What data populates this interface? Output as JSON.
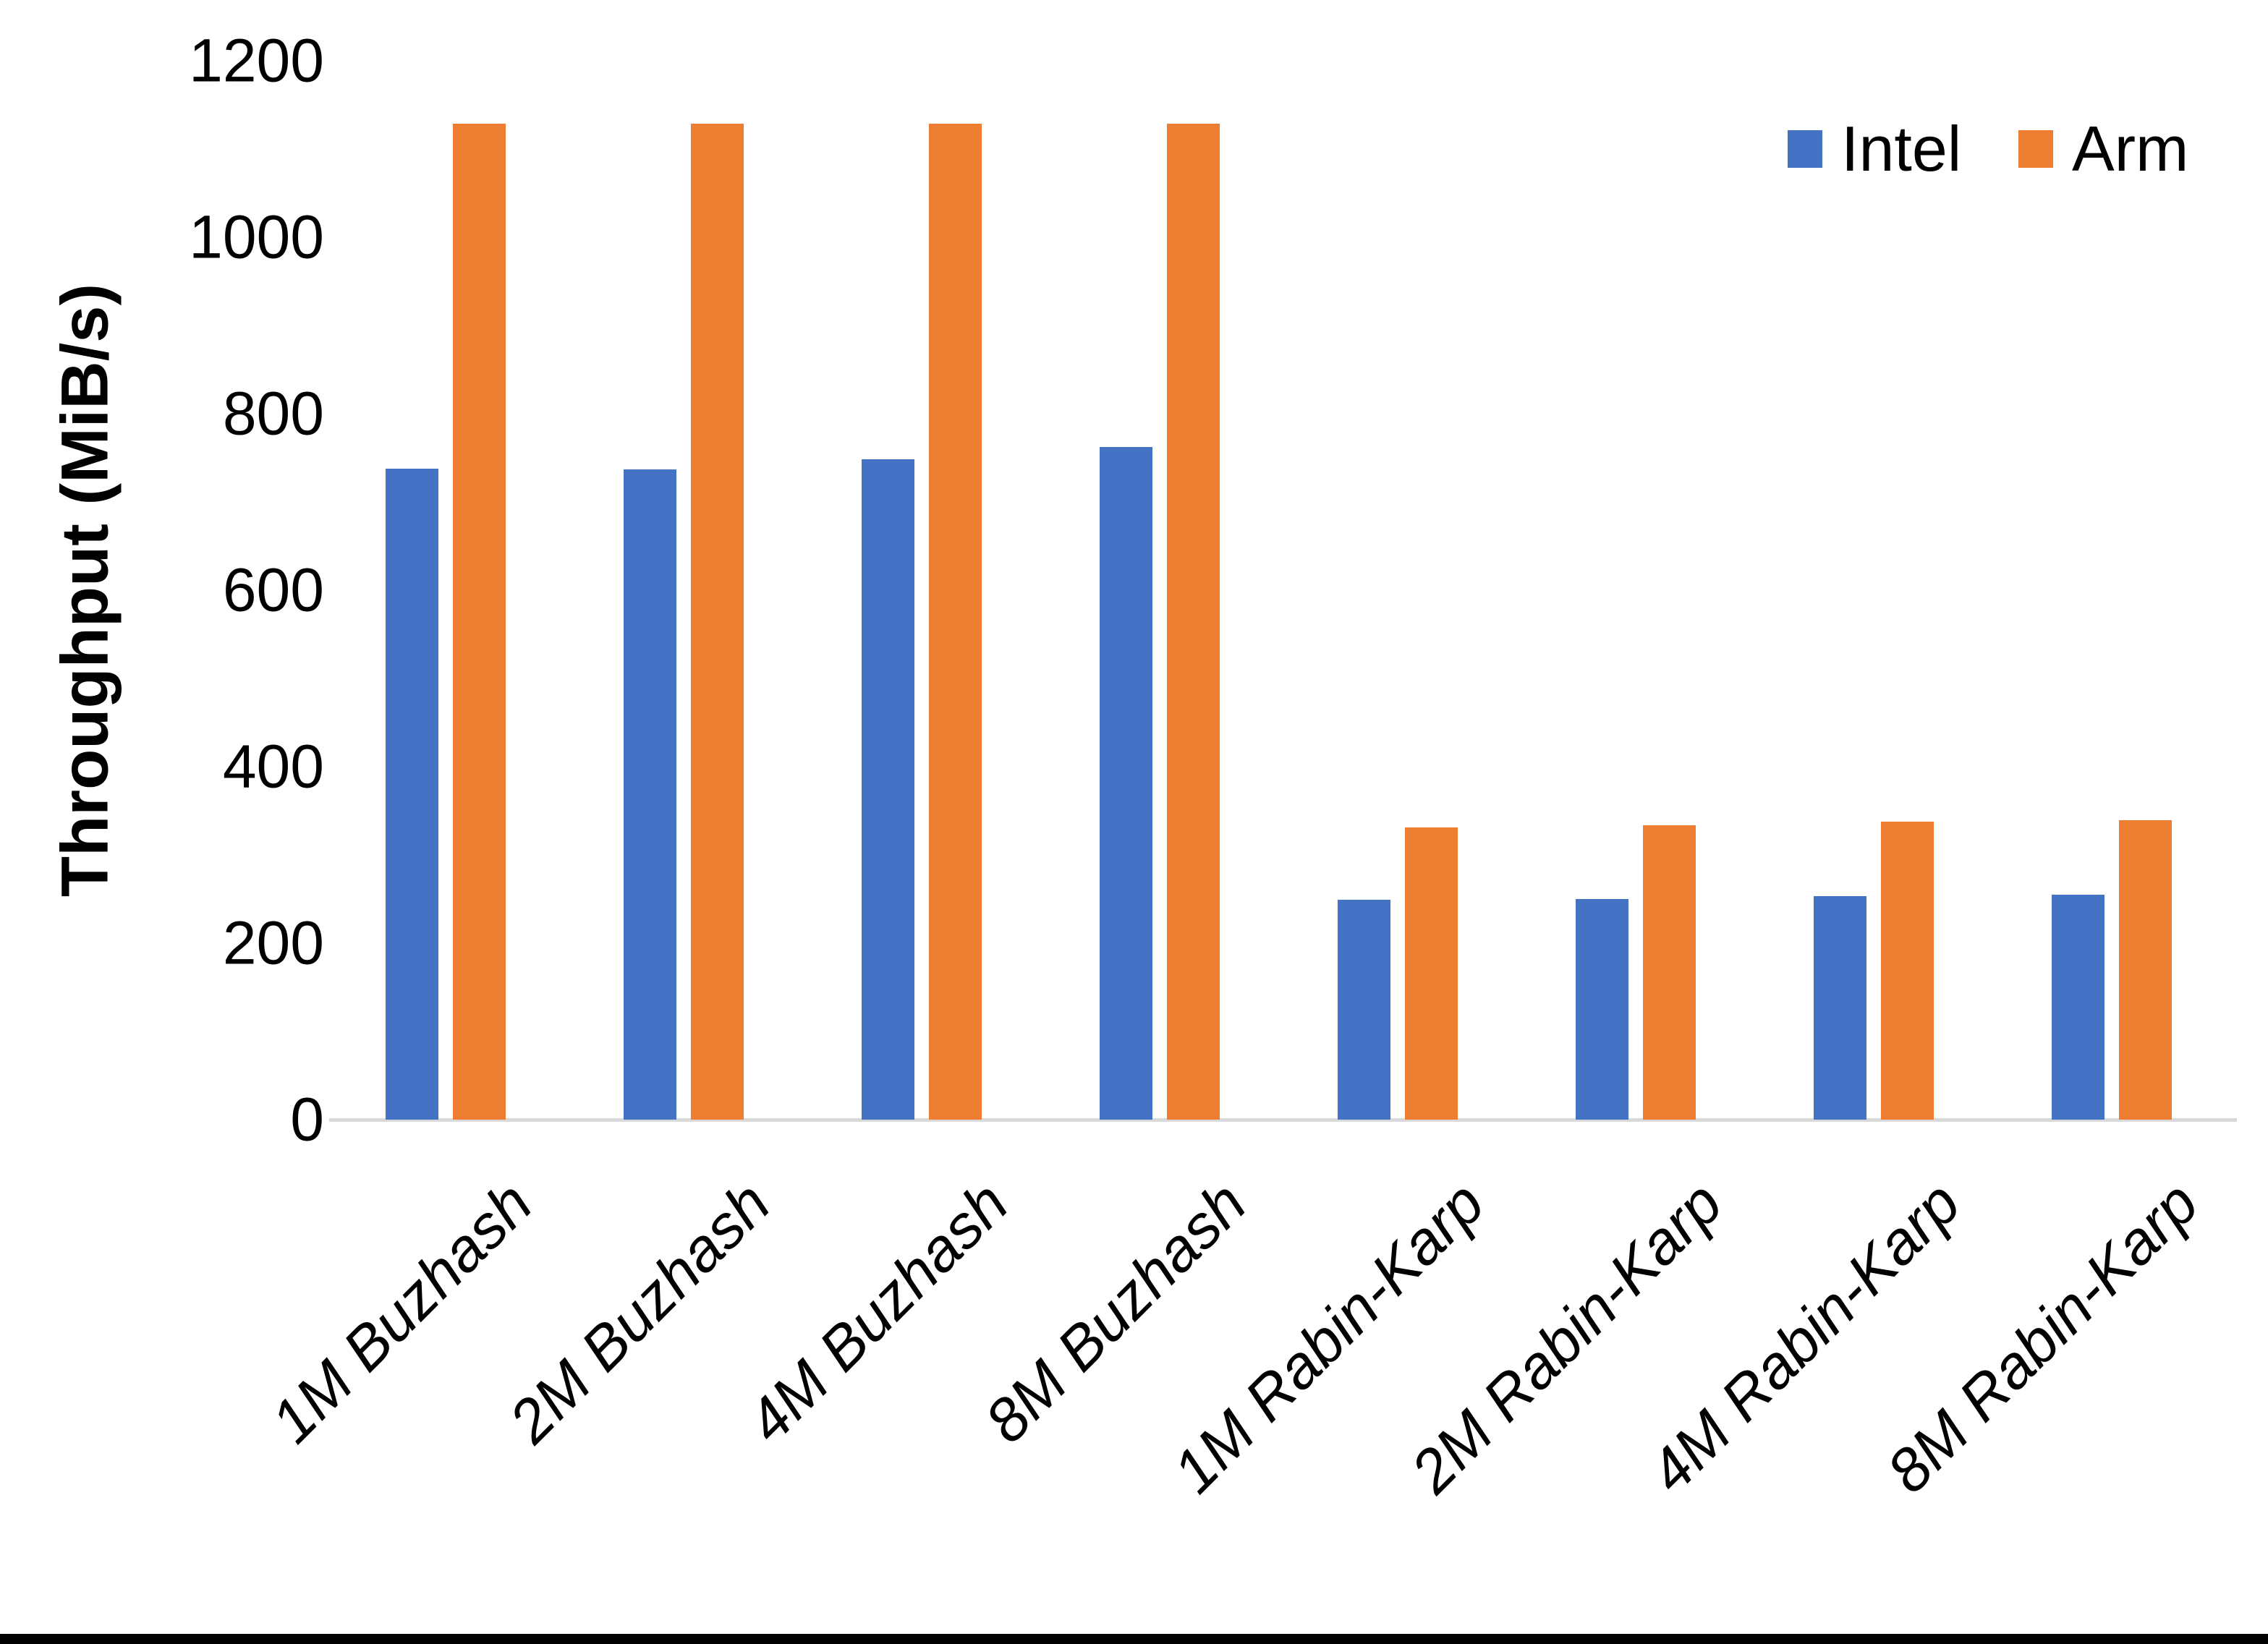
{
  "chart_data": {
    "type": "bar",
    "title": "",
    "ylabel": "Throughput (MiB/s)",
    "xlabel": "",
    "categories": [
      "1M Buzhash",
      "2M Buzhash",
      "4M Buzhash",
      "8M Buzhash",
      "1M Rabin-Karp",
      "2M Rabin-Karp",
      "4M Rabin-Karp",
      "8M Rabin-Karp"
    ],
    "series": [
      {
        "name": "Intel",
        "color": "#4472C4",
        "values": [
          738,
          737,
          748,
          762,
          249,
          250,
          253,
          255
        ]
      },
      {
        "name": "Arm",
        "color": "#ED7D31",
        "values": [
          1129,
          1129,
          1129,
          1129,
          331,
          334,
          338,
          339
        ]
      }
    ],
    "ylim": [
      0,
      1200
    ],
    "yticks": [
      0,
      200,
      400,
      600,
      800,
      1000,
      1200
    ],
    "grid": false,
    "legend_position": "top-right",
    "axis_line_color": "#D9D9D9",
    "text_color": "#000000"
  }
}
